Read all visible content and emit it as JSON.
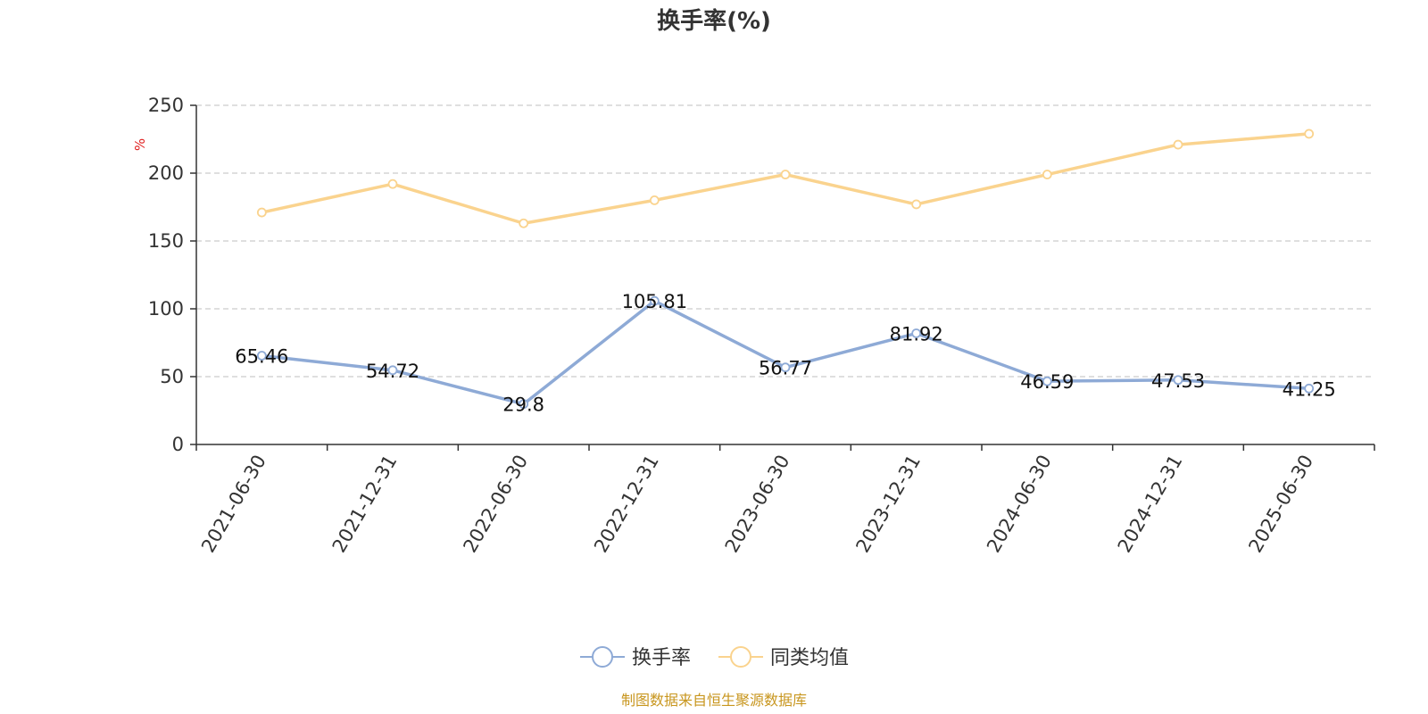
{
  "chart_data": {
    "type": "line",
    "title": "换手率(%)",
    "ylabel": "%",
    "ylim": [
      0,
      250
    ],
    "yticks": [
      0,
      50,
      100,
      150,
      200,
      250
    ],
    "categories": [
      "2021-06-30",
      "2021-12-31",
      "2022-06-30",
      "2022-12-31",
      "2023-06-30",
      "2023-12-31",
      "2024-06-30",
      "2024-12-31",
      "2025-06-30"
    ],
    "series": [
      {
        "name": "换手率",
        "color": "#8eaad6",
        "values": [
          65.46,
          54.72,
          29.8,
          105.81,
          56.77,
          81.92,
          46.59,
          47.53,
          41.25
        ],
        "labels": [
          "65.46",
          "54.72",
          "29.8",
          "105.81",
          "56.77",
          "81.92",
          "46.59",
          "47.53",
          "41.25"
        ]
      },
      {
        "name": "同类均值",
        "color": "#fad38e",
        "values": [
          171,
          192,
          163,
          180,
          199,
          177,
          199,
          221,
          229
        ]
      }
    ],
    "grid": true,
    "legend_position": "bottom"
  },
  "unit_color": "#e02020",
  "source_text": "制图数据来自恒生聚源数据库",
  "source_color": "#c8961e"
}
